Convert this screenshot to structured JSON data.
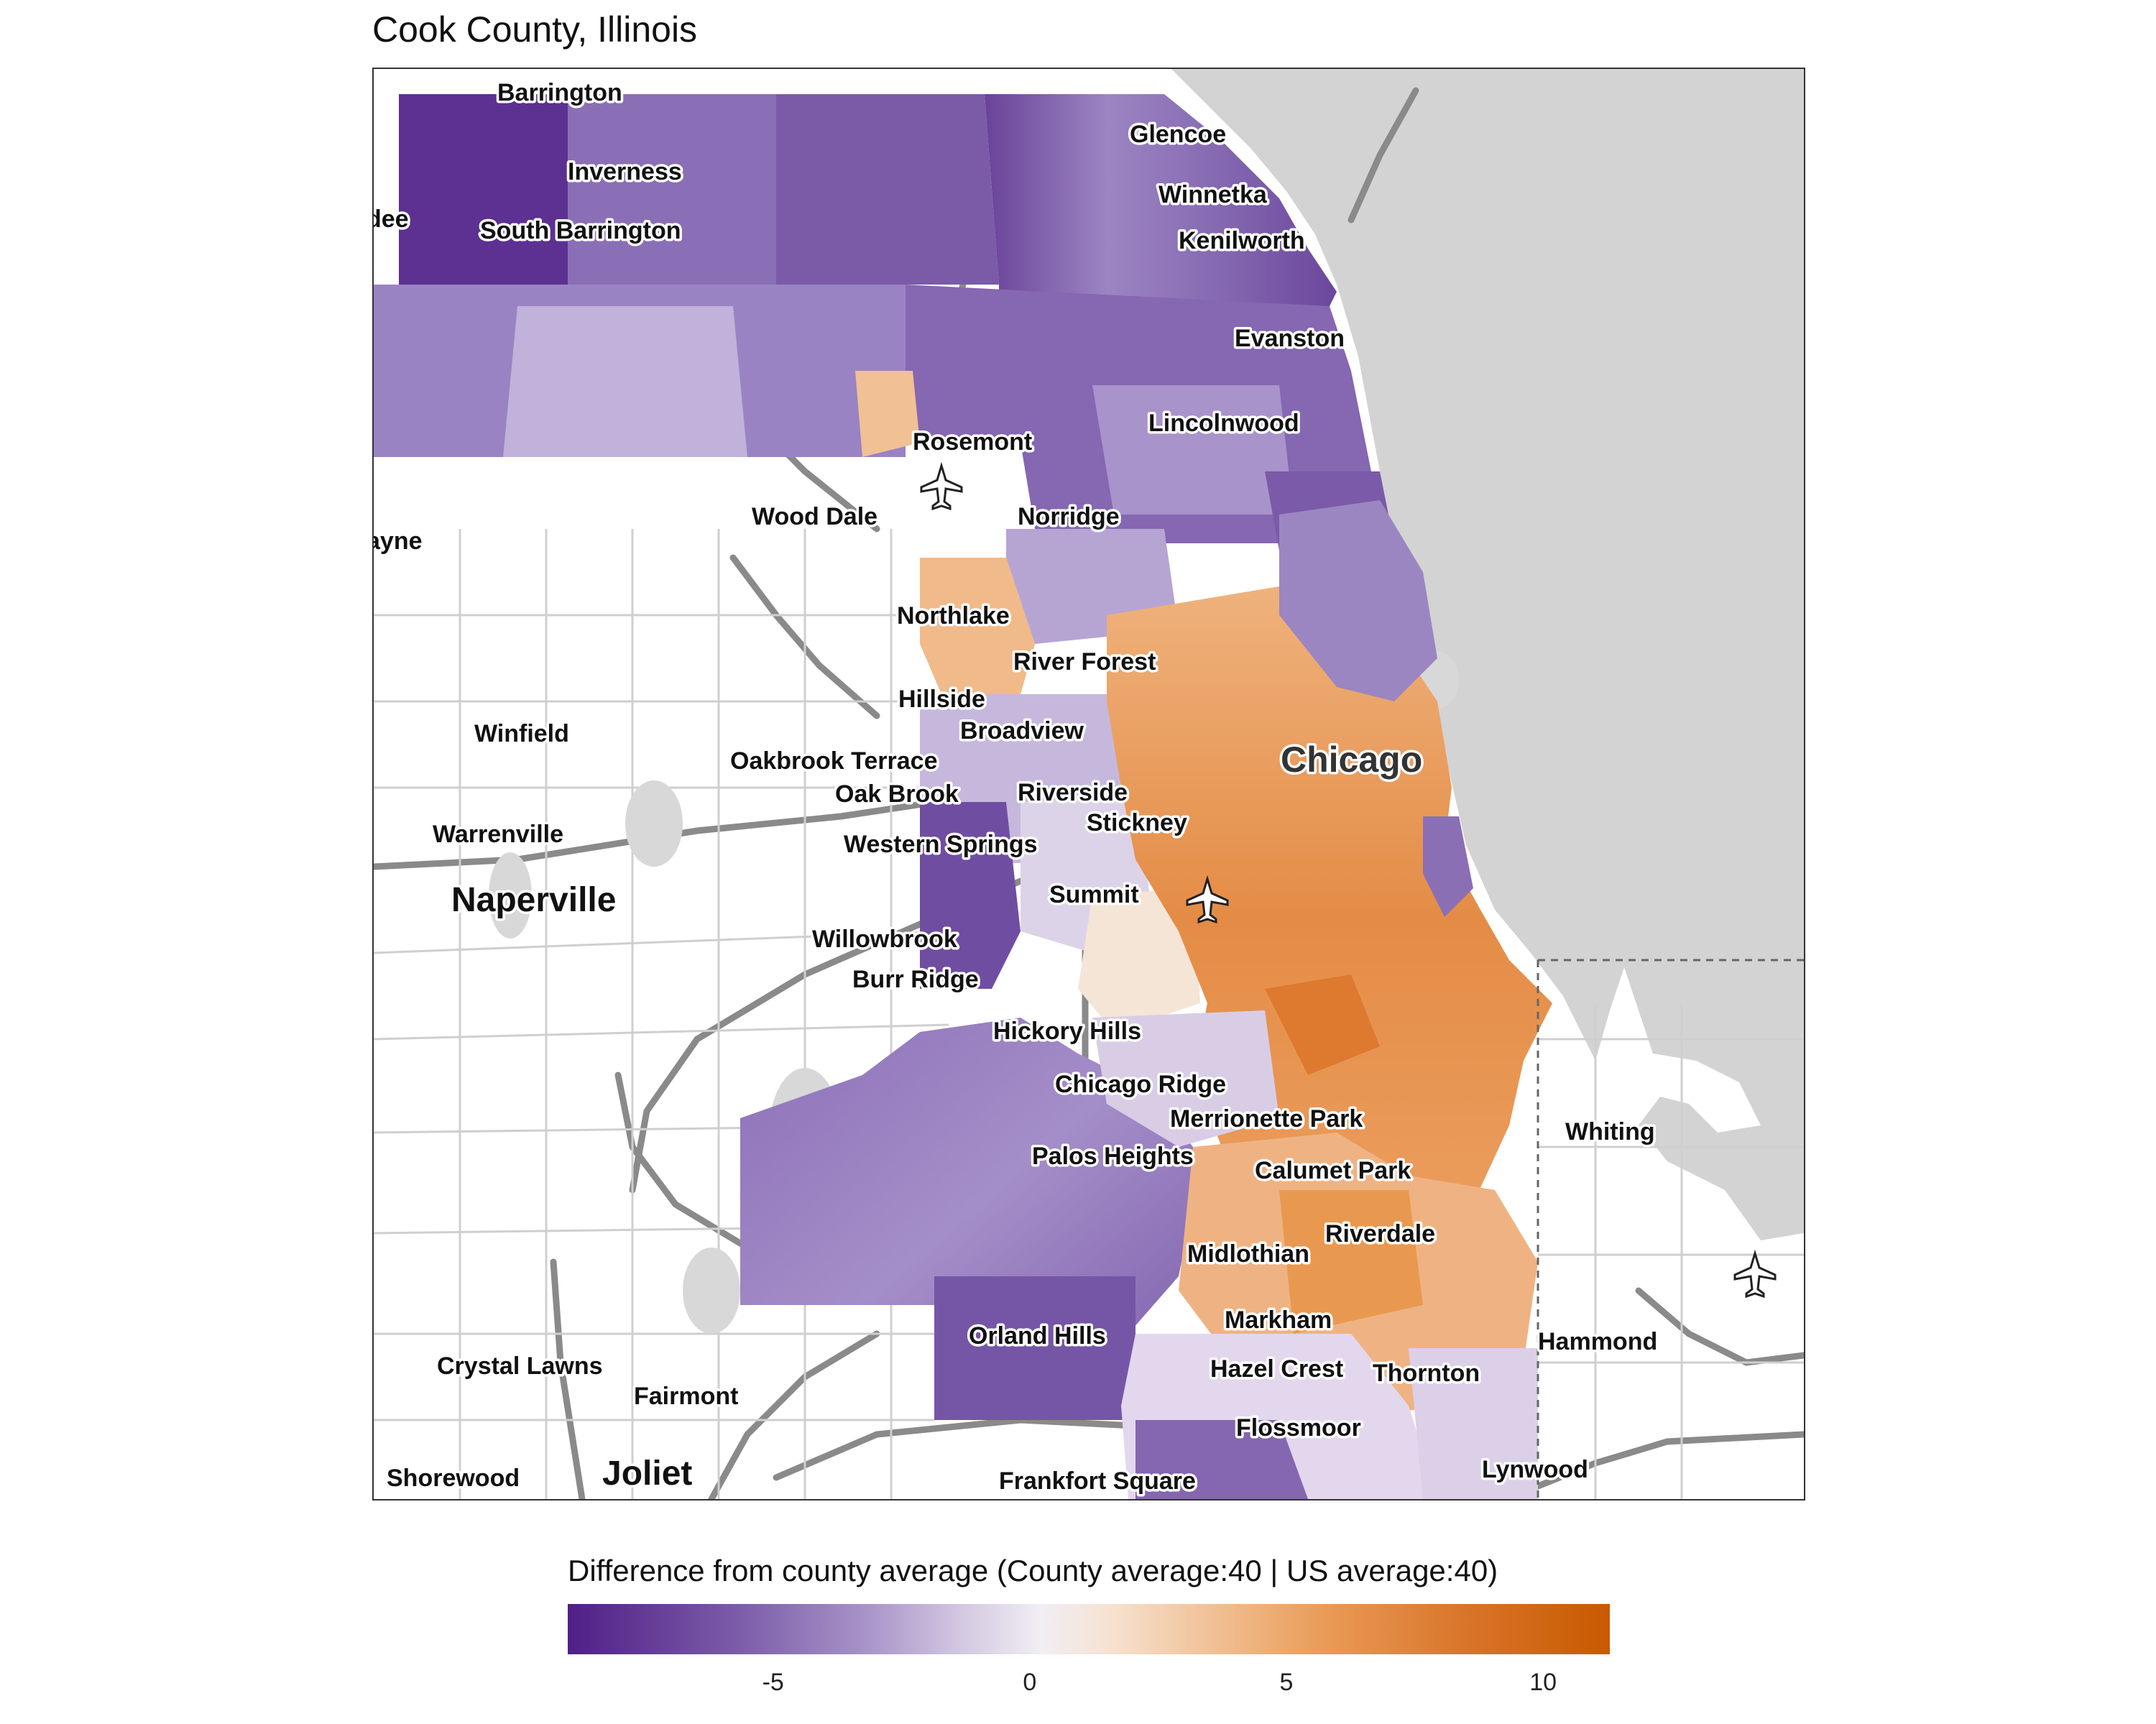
{
  "title": "Cook County, Illinois",
  "colors": {
    "low": "#4f1f86",
    "neutral": "#f1eef4",
    "high": "#c85a00",
    "water": "#d3d3d3",
    "road": "#8a8a8a"
  },
  "legend": {
    "title": "Difference from county average (County average:40 | US average:40)",
    "ticks": [
      "-5",
      "0",
      "5",
      "10"
    ],
    "scale_min": -9,
    "scale_max": 11.3
  },
  "places": [
    "Barrington",
    "Glencoe",
    "Inverness",
    "Winnetka",
    "South Barrington",
    "Kenilworth",
    "Evanston",
    "Lincolnwood",
    "Rosemont",
    "Wood Dale",
    "Norridge",
    "Northlake",
    "River Forest",
    "Hillside",
    "Broadview",
    "Winfield",
    "Oakbrook Terrace",
    "Chicago",
    "Oak Brook",
    "Riverside",
    "Warrenville",
    "Stickney",
    "Western Springs",
    "Summit",
    "Naperville",
    "Willowbrook",
    "Burr Ridge",
    "Hickory Hills",
    "Chicago Ridge",
    "Merrionette Park",
    "Whiting",
    "Palos Heights",
    "Calumet Park",
    "Riverdale",
    "Midlothian",
    "Markham",
    "Orland Hills",
    "Hammond",
    "Hazel Crest",
    "Thornton",
    "Crystal Lawns",
    "Fairmont",
    "Flossmoor",
    "Shorewood",
    "Joliet",
    "Frankfort Square",
    "Lynwood",
    "ayne",
    "dee"
  ],
  "icons": [
    "airplane-icon"
  ]
}
